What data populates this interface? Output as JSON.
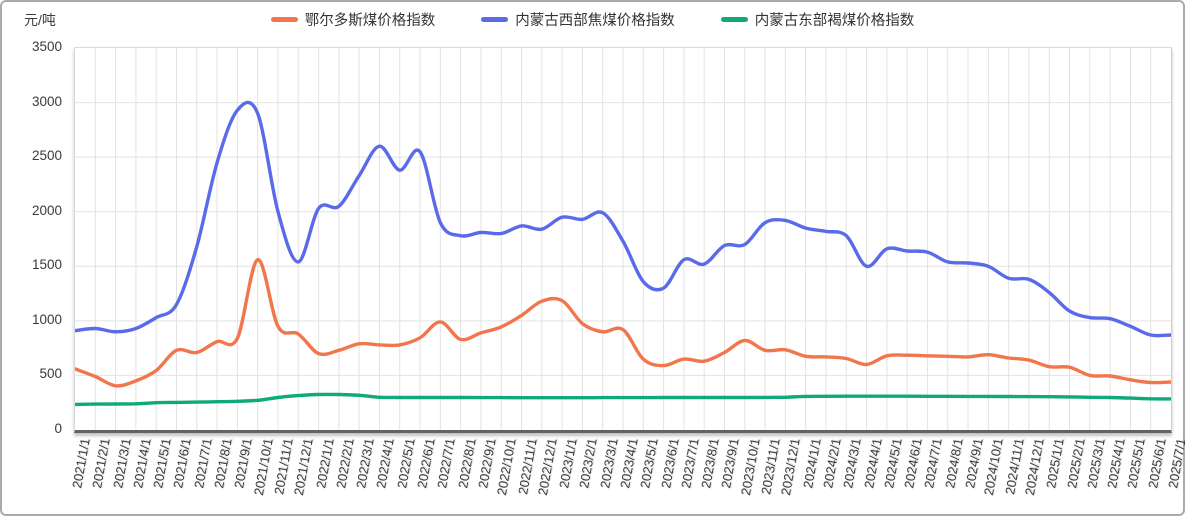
{
  "unit_label": "元/吨",
  "chart_data": {
    "type": "line",
    "title": "",
    "ylabel": "元/吨",
    "ylim": [
      0,
      3500
    ],
    "yticks": [
      0,
      500,
      1000,
      1500,
      2000,
      2500,
      3000,
      3500
    ],
    "grid": true,
    "legend_position": "top",
    "x": [
      "2021/1/1",
      "2021/2/1",
      "2021/3/1",
      "2021/4/1",
      "2021/5/1",
      "2021/6/1",
      "2021/7/1",
      "2021/8/1",
      "2021/9/1",
      "2021/10/1",
      "2021/11/1",
      "2021/12/1",
      "2022/1/1",
      "2022/2/1",
      "2022/3/1",
      "2022/4/1",
      "2022/5/1",
      "2022/6/1",
      "2022/7/1",
      "2022/8/1",
      "2022/9/1",
      "2022/10/1",
      "2022/11/1",
      "2022/12/1",
      "2023/1/1",
      "2023/2/1",
      "2023/3/1",
      "2023/4/1",
      "2023/5/1",
      "2023/6/1",
      "2023/7/1",
      "2023/8/1",
      "2023/9/1",
      "2023/10/1",
      "2023/11/1",
      "2023/12/1",
      "2024/1/1",
      "2024/2/1",
      "2024/3/1",
      "2024/4/1",
      "2024/5/1",
      "2024/6/1",
      "2024/7/1",
      "2024/8/1",
      "2024/9/1",
      "2024/10/1",
      "2024/11/1",
      "2024/12/1",
      "2025/1/1",
      "2025/2/1",
      "2025/3/1",
      "2025/4/1",
      "2025/5/1",
      "2025/6/1",
      "2025/7/1"
    ],
    "series": [
      {
        "name": "鄂尔多斯煤价格指数",
        "color": "#f1764c",
        "values": [
          560,
          490,
          405,
          450,
          545,
          730,
          710,
          810,
          840,
          1560,
          950,
          880,
          700,
          730,
          790,
          780,
          780,
          845,
          990,
          830,
          890,
          945,
          1050,
          1180,
          1185,
          975,
          900,
          920,
          650,
          590,
          650,
          630,
          710,
          820,
          730,
          735,
          675,
          670,
          655,
          600,
          680,
          685,
          680,
          675,
          670,
          690,
          660,
          640,
          580,
          575,
          500,
          495,
          460,
          435,
          440
        ]
      },
      {
        "name": "内蒙古西部焦煤价格指数",
        "color": "#5a6bea",
        "values": [
          910,
          930,
          900,
          930,
          1030,
          1150,
          1680,
          2450,
          2930,
          2900,
          2000,
          1540,
          2030,
          2050,
          2330,
          2600,
          2380,
          2550,
          1900,
          1780,
          1810,
          1800,
          1870,
          1840,
          1950,
          1930,
          1990,
          1730,
          1360,
          1300,
          1560,
          1520,
          1690,
          1700,
          1900,
          1920,
          1850,
          1820,
          1780,
          1500,
          1660,
          1640,
          1630,
          1540,
          1530,
          1500,
          1390,
          1380,
          1260,
          1090,
          1030,
          1020,
          950,
          870,
          870
        ]
      },
      {
        "name": "内蒙古东部褐煤价格指数",
        "color": "#0fa97c",
        "values": [
          235,
          237,
          238,
          240,
          250,
          253,
          256,
          259,
          263,
          272,
          298,
          315,
          325,
          325,
          318,
          300,
          298,
          298,
          298,
          298,
          297,
          297,
          296,
          296,
          296,
          296,
          297,
          297,
          297,
          298,
          298,
          298,
          298,
          298,
          299,
          300,
          308,
          309,
          310,
          310,
          310,
          310,
          309,
          309,
          308,
          308,
          307,
          306,
          305,
          303,
          300,
          298,
          292,
          286,
          285
        ]
      }
    ],
    "grid_color": "#e2e2e2",
    "axis_color": "#636363"
  }
}
